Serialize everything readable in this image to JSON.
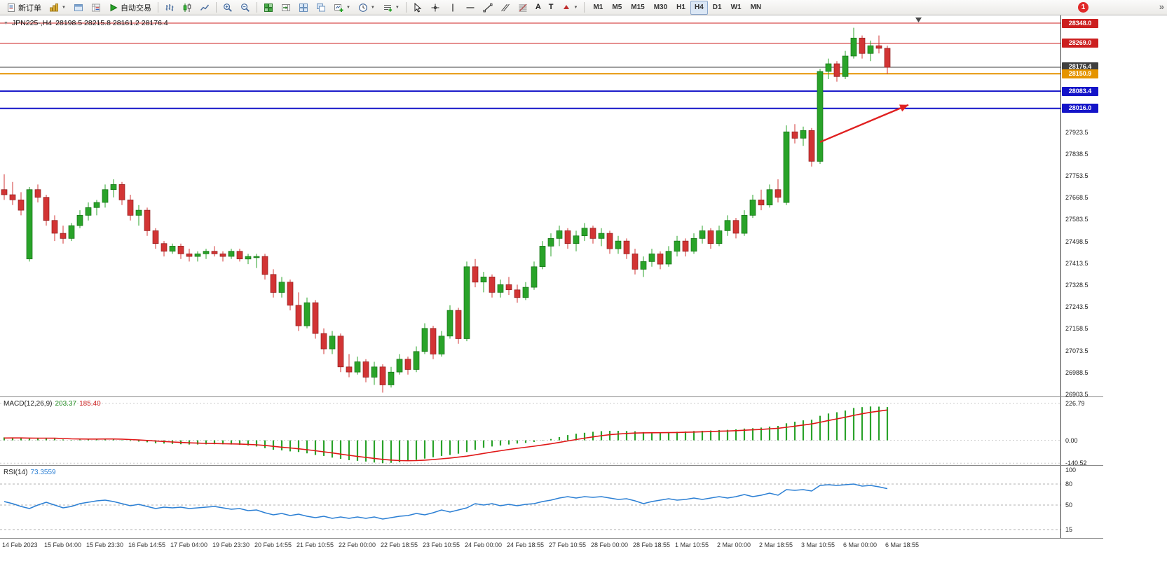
{
  "icons": {
    "caret": "▼",
    "overflow": "»",
    "one_click": "▼",
    "text_tool": "A",
    "label_tool": "T"
  },
  "toolbar": {
    "new_order_label": "新订单",
    "autotrading_label": "自动交易",
    "timeframes": [
      "M1",
      "M5",
      "M15",
      "M30",
      "H1",
      "H4",
      "D1",
      "W1",
      "MN"
    ],
    "active_timeframe": "H4",
    "notification_badge": "1"
  },
  "chart_data": {
    "type": "candlestick",
    "symbol_title": "JPN225-,H4",
    "ohlc_text": "28198.5 28215.8 28161.2 28176.4",
    "view": {
      "price_top": 28378.0,
      "price_bottom": 26895.0
    },
    "colors": {
      "up": "#29a329",
      "down": "#d23434",
      "up_border": "#147014",
      "down_border": "#8f1d1d"
    },
    "price_lines": [
      {
        "price": 28348.0,
        "label": "28348.0",
        "color": "#cc2020",
        "width": 1
      },
      {
        "price": 28269.0,
        "label": "28269.0",
        "color": "#cc2020",
        "width": 1
      },
      {
        "price": 28176.4,
        "label": "28176.4",
        "color": "#3f3f3f",
        "width": 1
      },
      {
        "price": 28150.9,
        "label": "28150.9",
        "color": "#e59400",
        "width": 2
      },
      {
        "price": 28083.4,
        "label": "28083.4",
        "color": "#1414c8",
        "width": 2
      },
      {
        "price": 28016.0,
        "label": "28016.0",
        "color": "#1414c8",
        "width": 2
      }
    ],
    "price_axis_ticks": [
      27923.5,
      27838.5,
      27753.5,
      27668.5,
      27583.5,
      27498.5,
      27413.5,
      27328.5,
      27243.5,
      27158.5,
      27073.5,
      26988.5,
      26903.5
    ],
    "trend_arrow": {
      "from_index": 97,
      "from_price": 27885,
      "to_index": 107.5,
      "to_price": 28030,
      "color": "#e02020"
    },
    "label_every": 5,
    "time_labels": [
      "14 Feb 2023",
      "15 Feb 04:00",
      "15 Feb 23:30",
      "16 Feb 14:55",
      "17 Feb 04:00",
      "19 Feb 23:30",
      "20 Feb 14:55",
      "21 Feb 10:55",
      "22 Feb 00:00",
      "22 Feb 18:55",
      "23 Feb 10:55",
      "24 Feb 00:00",
      "24 Feb 18:55",
      "27 Feb 10:55",
      "28 Feb 00:00",
      "28 Feb 18:55",
      "1 Mar 10:55",
      "2 Mar 00:00",
      "2 Mar 18:55",
      "3 Mar 10:55",
      "6 Mar 00:00",
      "6 Mar 18:55"
    ],
    "candles": [
      [
        27700,
        27760,
        27660,
        27680
      ],
      [
        27680,
        27730,
        27640,
        27660
      ],
      [
        27660,
        27690,
        27600,
        27620
      ],
      [
        27430,
        27710,
        27420,
        27700
      ],
      [
        27700,
        27720,
        27650,
        27670
      ],
      [
        27670,
        27680,
        27560,
        27580
      ],
      [
        27580,
        27600,
        27500,
        27530
      ],
      [
        27530,
        27560,
        27490,
        27510
      ],
      [
        27510,
        27570,
        27500,
        27560
      ],
      [
        27560,
        27620,
        27550,
        27600
      ],
      [
        27600,
        27650,
        27580,
        27630
      ],
      [
        27630,
        27660,
        27600,
        27650
      ],
      [
        27650,
        27720,
        27630,
        27700
      ],
      [
        27700,
        27740,
        27670,
        27720
      ],
      [
        27720,
        27730,
        27640,
        27660
      ],
      [
        27660,
        27680,
        27580,
        27600
      ],
      [
        27600,
        27640,
        27560,
        27620
      ],
      [
        27620,
        27630,
        27520,
        27540
      ],
      [
        27540,
        27550,
        27470,
        27490
      ],
      [
        27490,
        27500,
        27440,
        27460
      ],
      [
        27460,
        27490,
        27450,
        27480
      ],
      [
        27480,
        27490,
        27430,
        27450
      ],
      [
        27450,
        27470,
        27420,
        27440
      ],
      [
        27440,
        27460,
        27420,
        27450
      ],
      [
        27450,
        27470,
        27430,
        27460
      ],
      [
        27460,
        27480,
        27440,
        27450
      ],
      [
        27450,
        27460,
        27420,
        27440
      ],
      [
        27440,
        27470,
        27430,
        27460
      ],
      [
        27460,
        27470,
        27420,
        27430
      ],
      [
        27430,
        27450,
        27410,
        27440
      ],
      [
        27435,
        27450,
        27395,
        27440
      ],
      [
        27440,
        27450,
        27350,
        27370
      ],
      [
        27370,
        27390,
        27280,
        27300
      ],
      [
        27300,
        27360,
        27280,
        27340
      ],
      [
        27340,
        27350,
        27230,
        27250
      ],
      [
        27250,
        27300,
        27150,
        27170
      ],
      [
        27170,
        27280,
        27160,
        27260
      ],
      [
        27260,
        27270,
        27120,
        27140
      ],
      [
        27140,
        27160,
        27060,
        27080
      ],
      [
        27080,
        27150,
        27060,
        27130
      ],
      [
        27130,
        27140,
        26990,
        27010
      ],
      [
        27010,
        27060,
        26970,
        26990
      ],
      [
        26990,
        27050,
        26980,
        27030
      ],
      [
        27030,
        27040,
        26950,
        26970
      ],
      [
        26970,
        27030,
        26940,
        27010
      ],
      [
        27010,
        27020,
        26910,
        26940
      ],
      [
        26940,
        27010,
        26930,
        26990
      ],
      [
        26990,
        27060,
        26980,
        27040
      ],
      [
        27040,
        27050,
        26980,
        27000
      ],
      [
        27000,
        27090,
        26990,
        27070
      ],
      [
        27070,
        27180,
        27060,
        27160
      ],
      [
        27160,
        27170,
        27040,
        27060
      ],
      [
        27060,
        27150,
        27050,
        27130
      ],
      [
        27130,
        27250,
        27120,
        27230
      ],
      [
        27230,
        27240,
        27100,
        27120
      ],
      [
        27120,
        27420,
        27110,
        27400
      ],
      [
        27400,
        27430,
        27320,
        27340
      ],
      [
        27340,
        27380,
        27300,
        27360
      ],
      [
        27360,
        27370,
        27280,
        27300
      ],
      [
        27300,
        27350,
        27280,
        27330
      ],
      [
        27330,
        27360,
        27290,
        27310
      ],
      [
        27310,
        27330,
        27260,
        27280
      ],
      [
        27280,
        27340,
        27270,
        27320
      ],
      [
        27320,
        27420,
        27310,
        27400
      ],
      [
        27400,
        27500,
        27390,
        27480
      ],
      [
        27480,
        27530,
        27440,
        27510
      ],
      [
        27510,
        27560,
        27480,
        27540
      ],
      [
        27540,
        27550,
        27470,
        27490
      ],
      [
        27490,
        27540,
        27460,
        27520
      ],
      [
        27520,
        27570,
        27500,
        27550
      ],
      [
        27550,
        27560,
        27490,
        27510
      ],
      [
        27510,
        27550,
        27480,
        27530
      ],
      [
        27530,
        27540,
        27450,
        27470
      ],
      [
        27470,
        27520,
        27450,
        27500
      ],
      [
        27500,
        27510,
        27430,
        27450
      ],
      [
        27450,
        27470,
        27370,
        27390
      ],
      [
        27390,
        27440,
        27360,
        27420
      ],
      [
        27420,
        27470,
        27400,
        27450
      ],
      [
        27450,
        27460,
        27390,
        27410
      ],
      [
        27410,
        27480,
        27400,
        27460
      ],
      [
        27460,
        27520,
        27440,
        27500
      ],
      [
        27500,
        27510,
        27440,
        27460
      ],
      [
        27460,
        27530,
        27450,
        27510
      ],
      [
        27510,
        27560,
        27490,
        27540
      ],
      [
        27540,
        27550,
        27470,
        27490
      ],
      [
        27490,
        27560,
        27480,
        27540
      ],
      [
        27540,
        27600,
        27520,
        27580
      ],
      [
        27580,
        27590,
        27510,
        27530
      ],
      [
        27530,
        27620,
        27520,
        27600
      ],
      [
        27600,
        27680,
        27590,
        27660
      ],
      [
        27660,
        27700,
        27620,
        27640
      ],
      [
        27640,
        27720,
        27630,
        27700
      ],
      [
        27700,
        27740,
        27650,
        27670
      ],
      [
        27650,
        27950,
        27640,
        27925
      ],
      [
        27925,
        27955,
        27880,
        27900
      ],
      [
        27900,
        27945,
        27870,
        27930
      ],
      [
        27930,
        27940,
        27790,
        27810
      ],
      [
        27810,
        28170,
        27800,
        28160
      ],
      [
        28160,
        28210,
        28130,
        28190
      ],
      [
        28190,
        28200,
        28120,
        28140
      ],
      [
        28140,
        28240,
        28130,
        28220
      ],
      [
        28220,
        28330,
        28210,
        28290
      ],
      [
        28290,
        28300,
        28210,
        28230
      ],
      [
        28230,
        28280,
        28200,
        28260
      ],
      [
        28260,
        28300,
        28230,
        28250
      ],
      [
        28250,
        28260,
        28150,
        28176
      ]
    ]
  },
  "macd": {
    "label": "MACD(12,26,9)",
    "value_main": "203.37",
    "value_signal": "185.40",
    "colors": {
      "histogram": "#2aa22a",
      "signal": "#e01818"
    },
    "view": {
      "max": 264,
      "min": -152
    },
    "axis": [
      {
        "value": 226.79,
        "label": "226.79"
      },
      {
        "value": 0,
        "label": "0.00"
      },
      {
        "value": -140.52,
        "label": "-140.52"
      }
    ],
    "histogram": [
      18,
      16,
      14,
      10,
      12,
      14,
      10,
      5,
      2,
      4,
      6,
      8,
      10,
      8,
      2,
      -4,
      -8,
      -12,
      -18,
      -20,
      -22,
      -24,
      -26,
      -26,
      -25,
      -24,
      -24,
      -26,
      -28,
      -32,
      -38,
      -48,
      -58,
      -62,
      -68,
      -72,
      -80,
      -90,
      -96,
      -106,
      -114,
      -122,
      -126,
      -130,
      -136,
      -140,
      -138,
      -134,
      -128,
      -120,
      -112,
      -104,
      -96,
      -90,
      -82,
      -72,
      -58,
      -46,
      -38,
      -32,
      -26,
      -20,
      -16,
      -10,
      -2,
      8,
      20,
      32,
      40,
      46,
      52,
      56,
      58,
      58,
      57,
      55,
      50,
      48,
      48,
      50,
      52,
      54,
      57,
      58,
      60,
      63,
      64,
      67,
      72,
      74,
      78,
      84,
      88,
      104,
      114,
      122,
      126,
      150,
      164,
      172,
      182,
      198,
      203,
      207,
      206,
      203.37
    ],
    "signal": [
      14,
      14.5,
      14.5,
      13.5,
      13,
      13,
      12.5,
      11,
      9,
      8,
      7.5,
      7.5,
      8,
      8,
      7,
      4.5,
      2,
      -1,
      -4.5,
      -7.5,
      -10.5,
      -13,
      -15.5,
      -17.5,
      -19,
      -20,
      -21,
      -22,
      -23,
      -25,
      -27.5,
      -31.5,
      -37,
      -42,
      -47,
      -52,
      -57.5,
      -64,
      -70.5,
      -77.5,
      -84.5,
      -92,
      -99,
      -105,
      -111,
      -117,
      -121,
      -124,
      -125,
      -124,
      -121.5,
      -118,
      -113.5,
      -108.5,
      -103,
      -97,
      -89,
      -80.5,
      -72,
      -64,
      -56.5,
      -49,
      -42.5,
      -36,
      -29,
      -21.5,
      -13,
      -4,
      4.5,
      13,
      21,
      28,
      34,
      38.5,
      42,
      44.5,
      45.5,
      46,
      46.5,
      47,
      48,
      49,
      50.5,
      52,
      53.5,
      55.5,
      57,
      59,
      61.5,
      64,
      66.5,
      70,
      73.5,
      79.5,
      86.5,
      93.5,
      100,
      110,
      121,
      131,
      141,
      152.5,
      162.5,
      171.5,
      178.5,
      185.4
    ]
  },
  "rsi": {
    "label": "RSI(14)",
    "value": "73.3559",
    "color": "#2b7fd4",
    "view": {
      "max": 106,
      "min": 3
    },
    "top_label": "100",
    "levels": [
      {
        "value": 80,
        "label": "80"
      },
      {
        "value": 50,
        "label": "50"
      },
      {
        "value": 15,
        "label": "15"
      }
    ],
    "values": [
      55,
      52,
      48,
      45,
      50,
      54,
      50,
      46,
      48,
      52,
      54,
      56,
      57,
      55,
      52,
      49,
      51,
      48,
      45,
      47,
      46,
      47,
      45,
      46,
      47,
      48,
      46,
      44,
      45,
      42,
      43,
      39,
      36,
      38,
      35,
      37,
      34,
      32,
      34,
      31,
      33,
      31,
      33,
      31,
      33,
      30,
      32,
      34,
      35,
      38,
      36,
      39,
      43,
      40,
      43,
      46,
      52,
      50,
      52,
      49,
      51,
      49,
      51,
      52,
      55,
      57,
      60,
      62,
      60,
      62,
      61,
      62,
      60,
      58,
      59,
      56,
      52,
      55,
      57,
      59,
      57,
      58,
      60,
      58,
      60,
      62,
      60,
      62,
      65,
      62,
      64,
      67,
      64,
      72,
      71,
      72,
      70,
      78,
      79,
      78,
      79,
      80,
      77,
      78,
      76,
      73.36
    ]
  }
}
